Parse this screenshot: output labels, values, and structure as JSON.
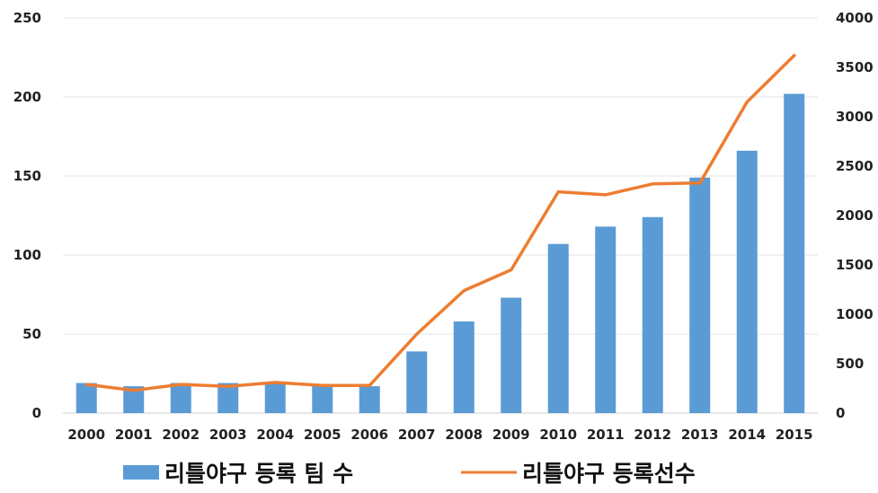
{
  "chart_data": {
    "type": "bar",
    "categories": [
      "2000",
      "2001",
      "2002",
      "2003",
      "2004",
      "2005",
      "2006",
      "2007",
      "2008",
      "2009",
      "2010",
      "2011",
      "2012",
      "2013",
      "2014",
      "2015"
    ],
    "series": [
      {
        "name": "리틀야구 등록 팀 수",
        "kind": "bar",
        "axis": "left",
        "color": "#5b9bd5",
        "values": [
          19,
          17,
          19,
          19,
          19,
          17,
          17,
          39,
          58,
          73,
          107,
          118,
          124,
          149,
          166,
          202
        ]
      },
      {
        "name": "리틀야구 등록선수",
        "kind": "line",
        "axis": "right",
        "color": "#ed7d31",
        "values": [
          290,
          230,
          290,
          270,
          310,
          280,
          280,
          800,
          1240,
          1450,
          2240,
          2210,
          2320,
          2330,
          3150,
          3620
        ]
      }
    ],
    "y_left": {
      "min": 0,
      "max": 250,
      "ticks": [
        "0",
        "50",
        "100",
        "150",
        "200",
        "250"
      ]
    },
    "y_right": {
      "min": 0,
      "max": 4000,
      "ticks": [
        "0",
        "500",
        "1000",
        "1500",
        "2000",
        "2500",
        "3000",
        "3500",
        "4000"
      ]
    },
    "grid": true,
    "legend": "bottom"
  }
}
